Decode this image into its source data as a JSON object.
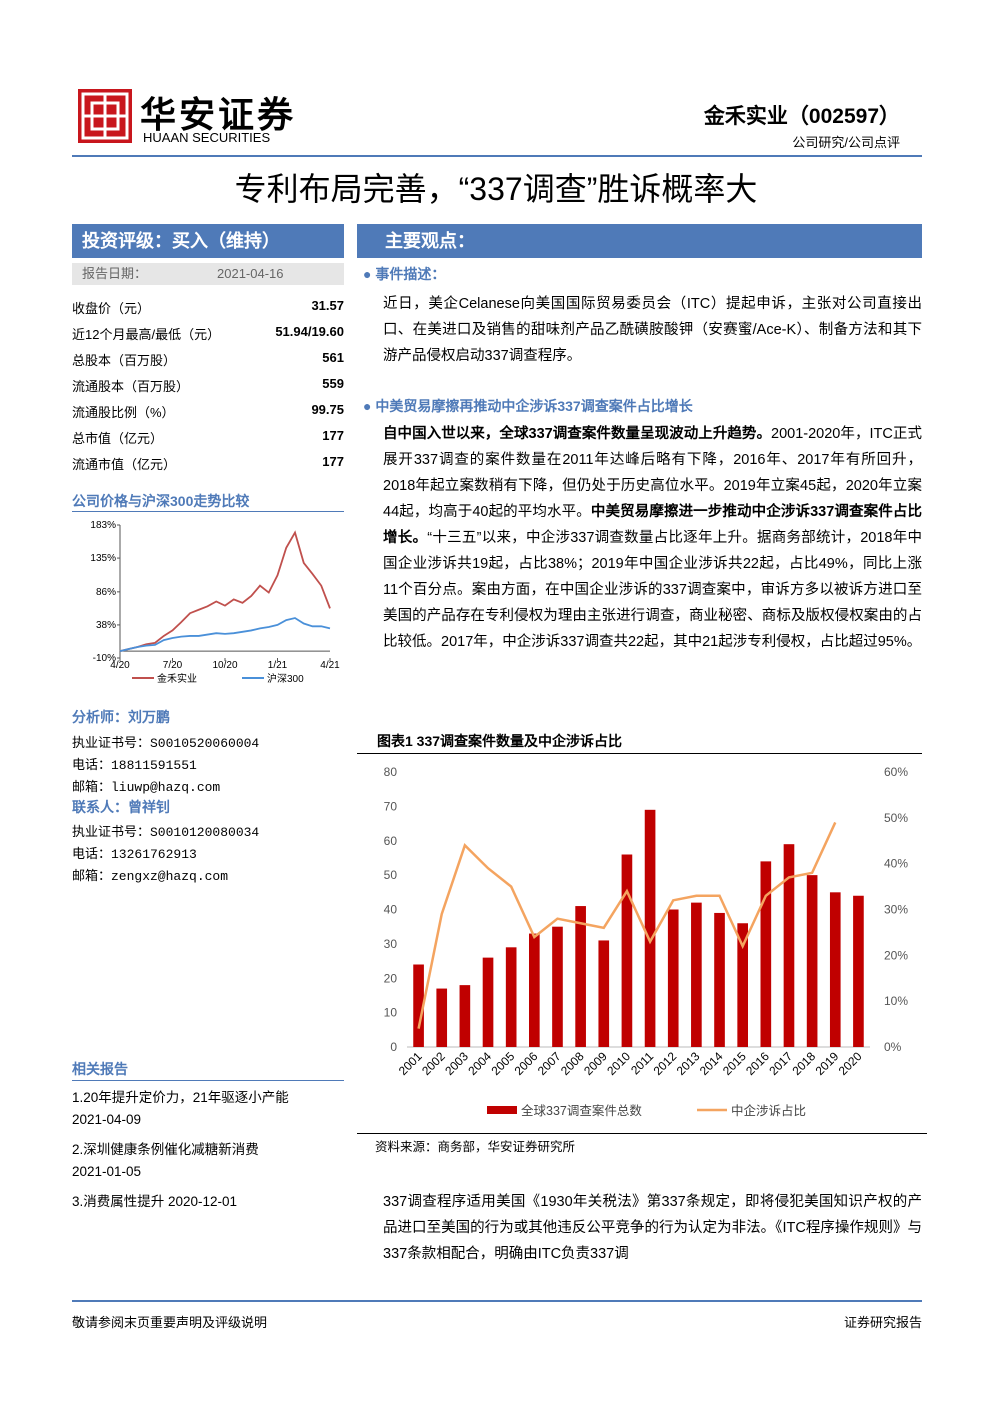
{
  "header": {
    "logo_cn": "华安证券",
    "logo_en": "HUAAN SECURITIES",
    "company": "金禾实业（002597）",
    "report_type": "公司研究/公司点评"
  },
  "title": "专利布局完善，“337调查”胜诉概率大",
  "sidebar": {
    "rating": "投资评级：买入（维持）",
    "date_label": "报告日期：",
    "date": "2021-04-16",
    "stats": [
      [
        "收盘价（元）",
        "31.57"
      ],
      [
        "近12个月最高/最低（元）",
        "51.94/19.60"
      ],
      [
        "总股本（百万股）",
        "561"
      ],
      [
        "流通股本（百万股）",
        "559"
      ],
      [
        "流通股比例（%）",
        "99.75"
      ],
      [
        "总市值（亿元）",
        "177"
      ],
      [
        "流通市值（亿元）",
        "177"
      ]
    ],
    "analyst": "分析师：刘万鹏",
    "analyst_lines": [
      "执业证书号：S0010520060004",
      "电话：18811591551",
      "邮箱：liuwp@hazq.com"
    ],
    "contact": "联系人：曾祥钊",
    "contact_lines": [
      "执业证书号：S0010120080034",
      "电话：13261762913",
      "邮箱：zengxz@hazq.com"
    ],
    "related_title": "相关报告",
    "related": [
      "1.20年提升定价力，21年驱逐小产能",
      "2021-04-09",
      "2.深圳健康条例催化减糖新消费",
      "2021-01-05",
      "3.消费属性提升 2020-12-01"
    ]
  },
  "main": {
    "heading": "主要观点：",
    "sections": [
      {
        "title": "事件描述：",
        "paragraphs": [
          [
            {
              "text": "近日，美企Celanese向美国国际贸易委员会（ITC）提起申诉，主张对公司直接出口、在美进口及销售的甜味剂产品乙酰磺胺酸钾（安赛蜜/Ace-K）、制备方法和其下游产品侵权启动337调查程序。"
            }
          ]
        ]
      },
      {
        "title": "中美贸易摩擦再推动中企涉诉337调查案件占比增长",
        "paragraphs": [
          [
            {
              "text": "自中国入世以来，全球337调查案件数量呈现波动上升趋势。",
              "bold": true
            },
            {
              "text": "2001-2020年，ITC正式展开337调查的案件数量在2011年达峰后略有下降，2016年、2017年有所回升，2018年起立案数稍有下降，但仍处于历史高位水平。2019年立案45起，2020年立案44起，均高于40起的平均水平。"
            },
            {
              "text": "中美贸易摩擦进一步推动中企涉诉337调查案件占比增长。",
              "bold": true
            },
            {
              "text": "“十三五”以来，中企涉337调查数量占比逐年上升。据商务部统计，2018年中国企业涉诉共19起，占比38%；2019年中国企业涉诉共22起，占比49%，同比上涨11个百分点。案由方面，在中国企业涉诉的337调查案中，审诉方多以被诉方进口至美国的产品存在专利侵权为理由主张进行调查，商业秘密、商标及版权侵权案由的占比较低。2017年，中企涉诉337调查共22起，其中21起涉专利侵权，占比超过95%。"
            }
          ]
        ]
      }
    ],
    "closing": "337调查程序适用美国《1930年关税法》第337条规定，即将侵犯美国知识产权的产品进口至美国的行为或其他违反公平竞争的行为认定为非法。《ITC程序操作规则》与337条款相配合，明确由ITC负责337调"
  },
  "chart_data": [
    {
      "type": "line",
      "title": "公司价格与沪深300走势比较",
      "x": [
        0,
        0.5,
        1,
        1.5,
        2,
        2.5,
        3,
        3.5,
        4,
        4.5,
        5,
        5.5,
        6,
        6.5,
        7,
        7.5,
        8,
        8.5,
        9,
        9.5,
        10,
        10.5,
        11,
        11.5,
        12
      ],
      "xlim": [
        0,
        12
      ],
      "xticks": [
        {
          "value": 0,
          "label": "4/20"
        },
        {
          "value": 3,
          "label": "7/20"
        },
        {
          "value": 6,
          "label": "10/20"
        },
        {
          "value": 9,
          "label": "1/21"
        },
        {
          "value": 12,
          "label": "4/21"
        }
      ],
      "ylim": [
        -10,
        183
      ],
      "yticks": [
        {
          "value": -10,
          "label": "-10%"
        },
        {
          "value": 38,
          "label": "38%"
        },
        {
          "value": 86,
          "label": "86%"
        },
        {
          "value": 135,
          "label": "135%"
        },
        {
          "value": 183,
          "label": "183%"
        }
      ],
      "series": [
        {
          "name": "金禾实业",
          "color": "#c0504d",
          "values": [
            0,
            3,
            6,
            10,
            12,
            22,
            30,
            42,
            55,
            60,
            65,
            72,
            66,
            75,
            70,
            80,
            95,
            85,
            110,
            150,
            172,
            128,
            112,
            95,
            62
          ]
        },
        {
          "name": "沪深300",
          "color": "#4a90d9",
          "values": [
            0,
            3,
            6,
            8,
            9,
            16,
            19,
            21,
            22,
            22,
            24,
            26,
            25,
            26,
            28,
            30,
            33,
            35,
            38,
            45,
            48,
            40,
            36,
            36,
            33
          ]
        }
      ]
    },
    {
      "type": "combo",
      "title": "图表1 337调查案件数量及中企涉诉占比",
      "source": "资料来源：商务部，华安证券研究所",
      "categories": [
        "2001",
        "2002",
        "2003",
        "2004",
        "2005",
        "2006",
        "2007",
        "2008",
        "2009",
        "2010",
        "2011",
        "2012",
        "2013",
        "2014",
        "2015",
        "2016",
        "2017",
        "2018",
        "2019",
        "2020"
      ],
      "ylim": [
        0,
        80
      ],
      "yticks": [
        0,
        10,
        20,
        30,
        40,
        50,
        60,
        70,
        80
      ],
      "y2lim": [
        0,
        60
      ],
      "y2ticks": [
        {
          "value": 0,
          "label": "0%"
        },
        {
          "value": 10,
          "label": "10%"
        },
        {
          "value": 20,
          "label": "20%"
        },
        {
          "value": 30,
          "label": "30%"
        },
        {
          "value": 40,
          "label": "40%"
        },
        {
          "value": 50,
          "label": "50%"
        },
        {
          "value": 60,
          "label": "60%"
        }
      ],
      "series": [
        {
          "name": "全球337调查案件总数",
          "type": "bar",
          "color": "#c00000",
          "values": [
            24,
            17,
            18,
            26,
            29,
            33,
            35,
            41,
            31,
            56,
            69,
            40,
            42,
            39,
            36,
            54,
            59,
            50,
            45,
            44
          ]
        },
        {
          "name": "中企涉诉占比",
          "type": "line",
          "axis": "y2",
          "color": "#f4a460",
          "values": [
            4,
            29,
            44,
            39,
            35,
            24,
            28,
            27,
            26,
            34,
            23,
            32,
            33,
            33,
            22,
            33,
            37,
            38,
            49,
            null
          ]
        }
      ]
    }
  ],
  "footer": {
    "left": "敬请参阅末页重要声明及评级说明",
    "right": "证券研究报告"
  }
}
